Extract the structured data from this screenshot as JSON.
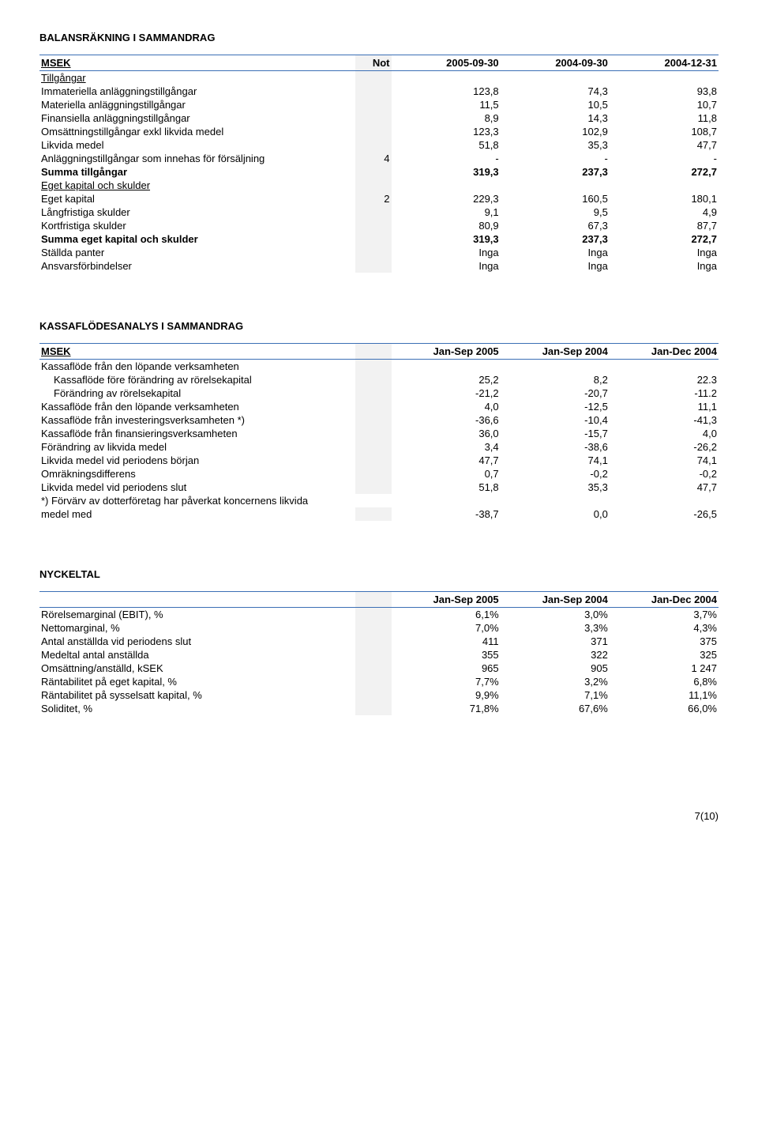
{
  "balance": {
    "title": "BALANSRÄKNING I SAMMANDRAG",
    "header": {
      "c0": "MSEK",
      "c1": "Not",
      "c2": "2005-09-30",
      "c3": "2004-09-30",
      "c4": "2004-12-31"
    },
    "sub1": "Tillgångar",
    "rows1": [
      {
        "l": "Immateriella anläggningstillgångar",
        "n": "",
        "v1": "123,8",
        "v2": "74,3",
        "v3": "93,8"
      },
      {
        "l": "Materiella anläggningstillgångar",
        "n": "",
        "v1": "11,5",
        "v2": "10,5",
        "v3": "10,7"
      },
      {
        "l": "Finansiella anläggningstillgångar",
        "n": "",
        "v1": "8,9",
        "v2": "14,3",
        "v3": "11,8"
      },
      {
        "l": "Omsättningstillgångar exkl likvida medel",
        "n": "",
        "v1": "123,3",
        "v2": "102,9",
        "v3": "108,7"
      },
      {
        "l": "Likvida medel",
        "n": "",
        "v1": "51,8",
        "v2": "35,3",
        "v3": "47,7"
      },
      {
        "l": "Anläggningstillgångar som innehas för försäljning",
        "n": "4",
        "v1": "-",
        "v2": "-",
        "v3": "-"
      }
    ],
    "sum1": {
      "l": "Summa tillgångar",
      "v1": "319,3",
      "v2": "237,3",
      "v3": "272,7"
    },
    "sub2": "Eget kapital och skulder",
    "rows2": [
      {
        "l": "Eget kapital",
        "n": "2",
        "v1": "229,3",
        "v2": "160,5",
        "v3": "180,1"
      },
      {
        "l": "Långfristiga skulder",
        "n": "",
        "v1": "9,1",
        "v2": "9,5",
        "v3": "4,9"
      },
      {
        "l": "Kortfristiga skulder",
        "n": "",
        "v1": "80,9",
        "v2": "67,3",
        "v3": "87,7"
      }
    ],
    "sum2": {
      "l": "Summa eget kapital och skulder",
      "v1": "319,3",
      "v2": "237,3",
      "v3": "272,7"
    },
    "rows3": [
      {
        "l": "Ställda panter",
        "n": "",
        "v1": "Inga",
        "v2": "Inga",
        "v3": "Inga"
      },
      {
        "l": "Ansvarsförbindelser",
        "n": "",
        "v1": "Inga",
        "v2": "Inga",
        "v3": "Inga"
      }
    ]
  },
  "cashflow": {
    "title": "KASSAFLÖDESANALYS I SAMMANDRAG",
    "header": {
      "c0": "MSEK",
      "c1": "Jan-Sep 2005",
      "c2": "Jan-Sep 2004",
      "c3": "Jan-Dec 2004"
    },
    "sub": "Kassaflöde från den löpande verksamheten",
    "indented": [
      {
        "l": "Kassaflöde före förändring av rörelsekapital",
        "v1": "25,2",
        "v2": "8,2",
        "v3": "22.3"
      },
      {
        "l": "Förändring av rörelsekapital",
        "v1": "-21,2",
        "v2": "-20,7",
        "v3": "-11.2"
      }
    ],
    "rows": [
      {
        "l": "Kassaflöde från den löpande verksamheten",
        "v1": "4,0",
        "v2": "-12,5",
        "v3": "11,1"
      },
      {
        "l": "Kassaflöde från investeringsverksamheten *)",
        "v1": "-36,6",
        "v2": "-10,4",
        "v3": "-41,3"
      },
      {
        "l": "Kassaflöde från finansieringsverksamheten",
        "v1": "36,0",
        "v2": "-15,7",
        "v3": "4,0"
      },
      {
        "l": "Förändring av likvida medel",
        "v1": "3,4",
        "v2": "-38,6",
        "v3": "-26,2"
      },
      {
        "l": "Likvida medel vid periodens början",
        "v1": "47,7",
        "v2": "74,1",
        "v3": "74,1"
      },
      {
        "l": "Omräkningsdifferens",
        "v1": "0,7",
        "v2": "-0,2",
        "v3": "-0,2"
      },
      {
        "l": "Likvida medel vid periodens slut",
        "v1": "51,8",
        "v2": "35,3",
        "v3": "47,7"
      }
    ],
    "footnote": {
      "l1": "*) Förvärv av dotterföretag har påverkat koncernens likvida",
      "l2": "medel med",
      "v1": "-38,7",
      "v2": "0,0",
      "v3": "-26,5"
    }
  },
  "keyfig": {
    "title": "NYCKELTAL",
    "header": {
      "c1": "Jan-Sep 2005",
      "c2": "Jan-Sep 2004",
      "c3": "Jan-Dec 2004"
    },
    "rows": [
      {
        "l": "Rörelsemarginal (EBIT), %",
        "v1": "6,1%",
        "v2": "3,0%",
        "v3": "3,7%"
      },
      {
        "l": "Nettomarginal, %",
        "v1": "7,0%",
        "v2": "3,3%",
        "v3": "4,3%"
      },
      {
        "l": "Antal anställda vid periodens slut",
        "v1": "411",
        "v2": "371",
        "v3": "375"
      },
      {
        "l": "Medeltal antal anställda",
        "v1": "355",
        "v2": "322",
        "v3": "325"
      },
      {
        "l": "Omsättning/anställd, kSEK",
        "v1": "965",
        "v2": "905",
        "v3": "1 247"
      },
      {
        "l": "Räntabilitet på eget kapital, %",
        "v1": "7,7%",
        "v2": "3,2%",
        "v3": "6,8%"
      },
      {
        "l": "Räntabilitet på sysselsatt kapital, %",
        "v1": "9,9%",
        "v2": "7,1%",
        "v3": "11,1%"
      },
      {
        "l": "Soliditet, %",
        "v1": "71,8%",
        "v2": "67,6%",
        "v3": "66,0%"
      }
    ]
  },
  "page": "7(10)"
}
